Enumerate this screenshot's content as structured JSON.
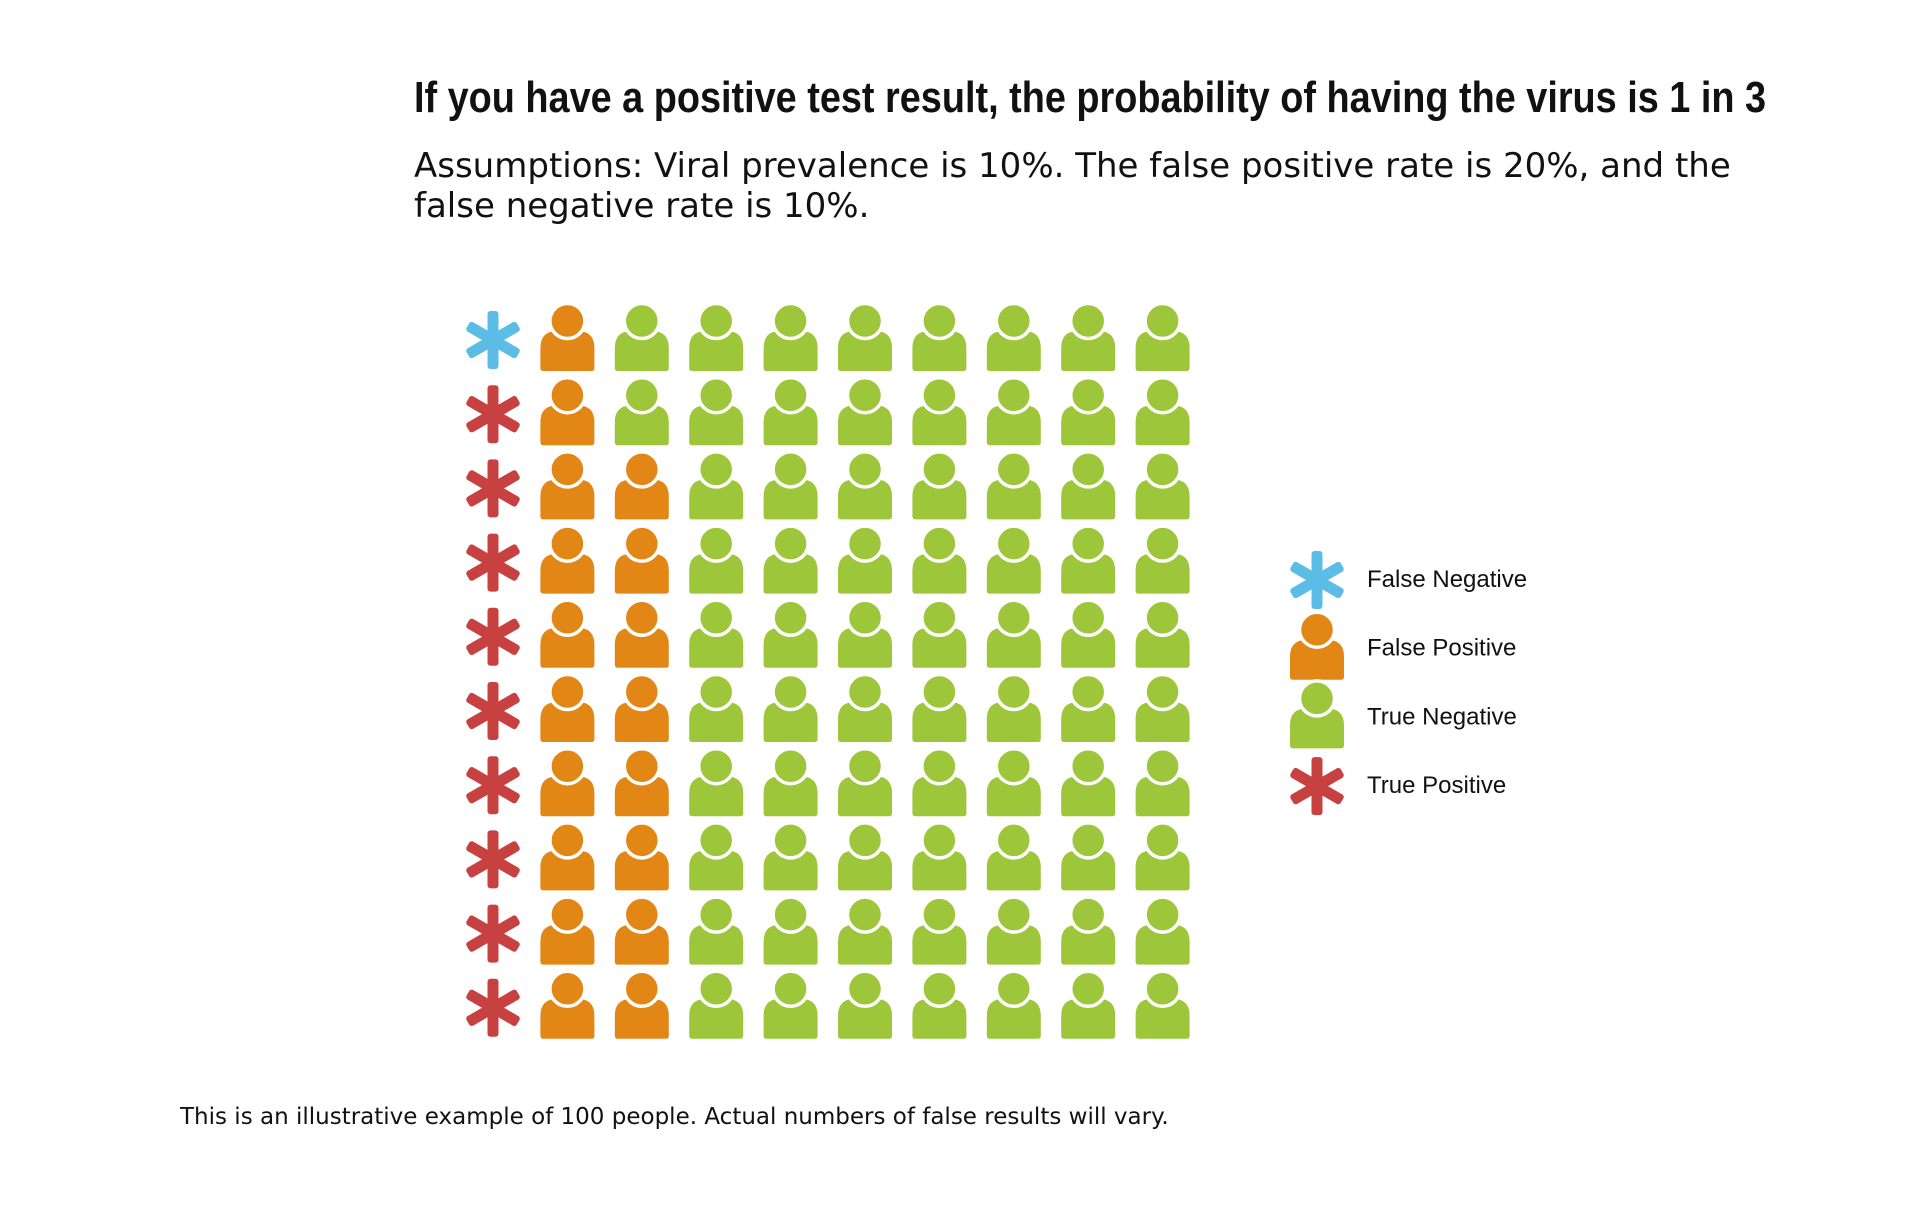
{
  "chart_data": {
    "type": "waffle",
    "title": "If you have a positive test result, the probability of having the virus is 1 in 3",
    "subtitle": "Assumptions: Viral prevalence is 10%. The false positive rate is 20%, and the false negative rate is 10%.",
    "footnote": "This is an illustrative example of 100 people. Actual numbers of false results will vary.",
    "grid": {
      "rows": 10,
      "cols": 10
    },
    "categories": [
      {
        "key": "FN",
        "name": "False Negative",
        "icon": "asterisk-icon",
        "color": "#5bbde6",
        "count": 1
      },
      {
        "key": "FP",
        "name": "False Positive",
        "icon": "person-icon",
        "color": "#e28715",
        "count": 18
      },
      {
        "key": "TN",
        "name": "True Negative",
        "icon": "person-icon",
        "color": "#9dc63b",
        "count": 72
      },
      {
        "key": "TP",
        "name": "True Positive",
        "icon": "asterisk-icon",
        "color": "#c84141",
        "count": 9
      }
    ],
    "cells": [
      [
        "FN",
        "FP",
        "TN",
        "TN",
        "TN",
        "TN",
        "TN",
        "TN",
        "TN",
        "TN"
      ],
      [
        "TP",
        "FP",
        "TN",
        "TN",
        "TN",
        "TN",
        "TN",
        "TN",
        "TN",
        "TN"
      ],
      [
        "TP",
        "FP",
        "FP",
        "TN",
        "TN",
        "TN",
        "TN",
        "TN",
        "TN",
        "TN"
      ],
      [
        "TP",
        "FP",
        "FP",
        "TN",
        "TN",
        "TN",
        "TN",
        "TN",
        "TN",
        "TN"
      ],
      [
        "TP",
        "FP",
        "FP",
        "TN",
        "TN",
        "TN",
        "TN",
        "TN",
        "TN",
        "TN"
      ],
      [
        "TP",
        "FP",
        "FP",
        "TN",
        "TN",
        "TN",
        "TN",
        "TN",
        "TN",
        "TN"
      ],
      [
        "TP",
        "FP",
        "FP",
        "TN",
        "TN",
        "TN",
        "TN",
        "TN",
        "TN",
        "TN"
      ],
      [
        "TP",
        "FP",
        "FP",
        "TN",
        "TN",
        "TN",
        "TN",
        "TN",
        "TN",
        "TN"
      ],
      [
        "TP",
        "FP",
        "FP",
        "TN",
        "TN",
        "TN",
        "TN",
        "TN",
        "TN",
        "TN"
      ],
      [
        "TP",
        "FP",
        "FP",
        "TN",
        "TN",
        "TN",
        "TN",
        "TN",
        "TN",
        "TN"
      ]
    ],
    "legend": {
      "placement": "right",
      "order": [
        "FN",
        "FP",
        "TN",
        "TP"
      ]
    }
  }
}
